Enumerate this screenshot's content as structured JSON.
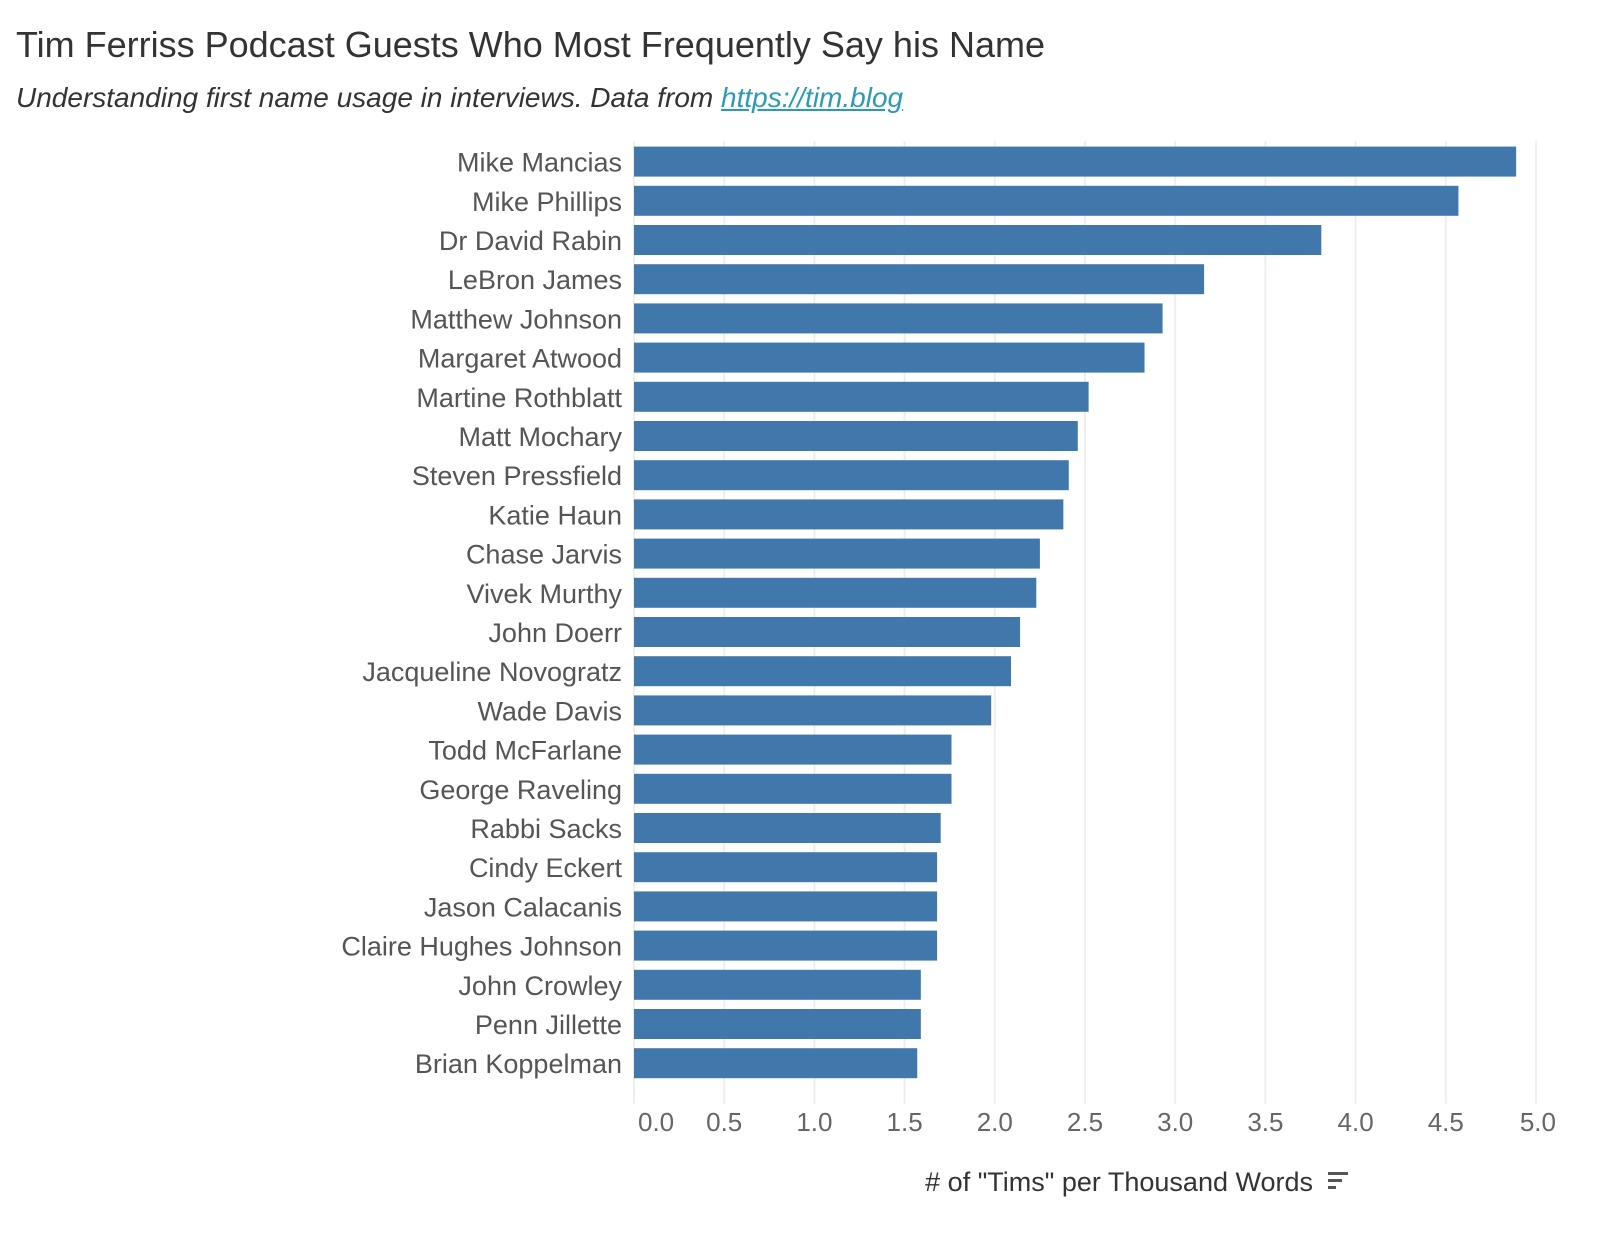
{
  "header": {
    "title": "Tim Ferriss Podcast Guests Who Most Frequently Say his Name",
    "subtitle_text": "Understanding first name usage in interviews. Data from ",
    "subtitle_link": "https://tim.blog"
  },
  "colors": {
    "bar": "#4178ab",
    "grid": "#eeeeee",
    "link": "#2a9bb5"
  },
  "sort_icon": "sort-descending-icon",
  "chart_data": {
    "type": "bar",
    "orientation": "horizontal",
    "title": "Tim Ferriss Podcast Guests Who Most Frequently Say his Name",
    "subtitle": "Understanding first name usage in interviews. Data from https://tim.blog",
    "xlabel": "# of \"Tims\" per Thousand Words",
    "ylabel": "",
    "xlim": [
      0,
      5.0
    ],
    "xticks": [
      "0.0",
      "0.5",
      "1.0",
      "1.5",
      "2.0",
      "2.5",
      "3.0",
      "3.5",
      "4.0",
      "4.5",
      "5.0"
    ],
    "grid": "vertical",
    "categories": [
      "Mike Mancias",
      "Mike Phillips",
      "Dr David Rabin",
      "LeBron James",
      "Matthew Johnson",
      "Margaret Atwood",
      "Martine Rothblatt",
      "Matt Mochary",
      "Steven Pressfield",
      "Katie Haun",
      "Chase Jarvis",
      "Vivek Murthy",
      "John Doerr",
      "Jacqueline Novogratz",
      "Wade Davis",
      "Todd McFarlane",
      "George Raveling",
      "Rabbi Sacks",
      "Cindy Eckert",
      "Jason Calacanis",
      "Claire Hughes Johnson",
      "John Crowley",
      "Penn Jillette",
      "Brian Koppelman"
    ],
    "values": [
      4.89,
      4.57,
      3.81,
      3.16,
      2.93,
      2.83,
      2.52,
      2.46,
      2.41,
      2.38,
      2.25,
      2.23,
      2.14,
      2.09,
      1.98,
      1.76,
      1.76,
      1.7,
      1.68,
      1.68,
      1.68,
      1.59,
      1.59,
      1.57
    ]
  }
}
